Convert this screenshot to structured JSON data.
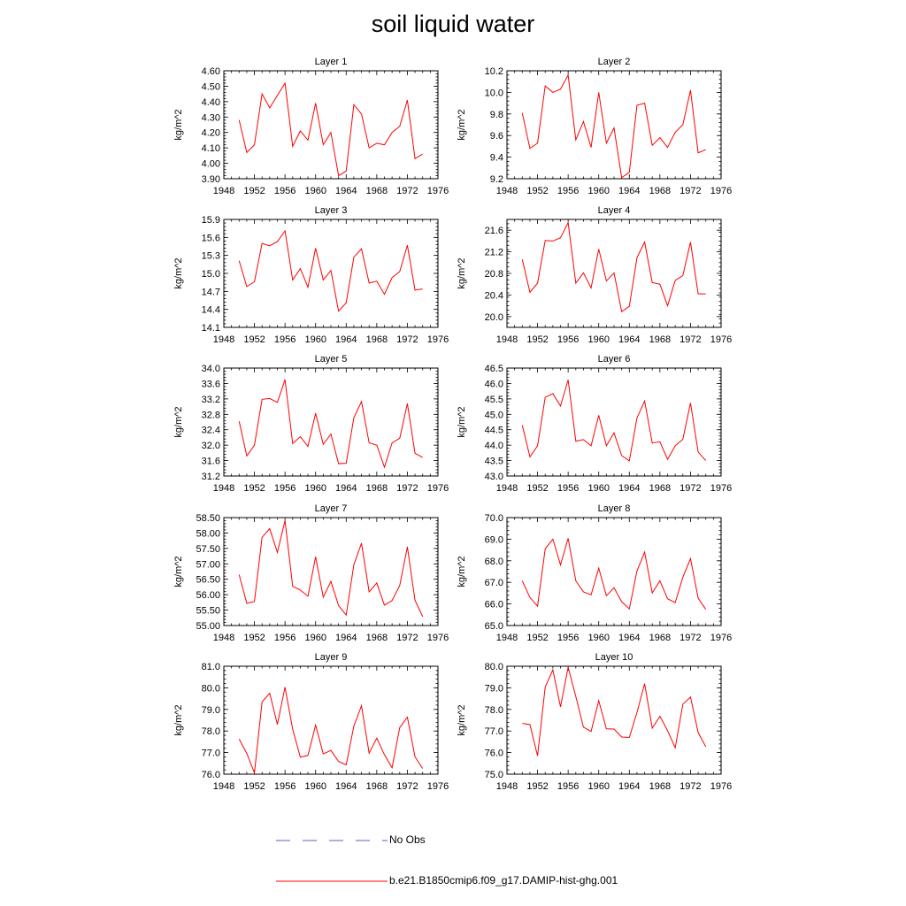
{
  "title": "soil liquid water",
  "legend": [
    {
      "label": "No Obs",
      "color": "#5b5bd6",
      "style": "dashed"
    },
    {
      "label": "b.e21.B1850cmip6.f09_g17.DAMIP-hist-ghg.001",
      "color": "#ff0000",
      "style": "solid"
    }
  ],
  "chart_data": [
    {
      "type": "line",
      "title": "Layer 1",
      "ylabel": "kg/m^2",
      "xlim": [
        1948,
        1976
      ],
      "xticks": [
        1948,
        1952,
        1956,
        1960,
        1964,
        1968,
        1972,
        1976
      ],
      "ylim": [
        3.9,
        4.6
      ],
      "yticks": [
        "3.90",
        "4.00",
        "4.10",
        "4.20",
        "4.30",
        "4.40",
        "4.50",
        "4.60"
      ],
      "x": [
        1950,
        1951,
        1952,
        1953,
        1954,
        1955,
        1956,
        1957,
        1958,
        1959,
        1960,
        1961,
        1962,
        1963,
        1964,
        1965,
        1966,
        1967,
        1968,
        1969,
        1970,
        1971,
        1972,
        1973,
        1974
      ],
      "series": [
        {
          "name": "b.e21.B1850cmip6.f09_g17.DAMIP-hist-ghg.001",
          "values": [
            4.28,
            4.07,
            4.12,
            4.45,
            4.36,
            4.44,
            4.52,
            4.11,
            4.21,
            4.15,
            4.39,
            4.12,
            4.2,
            3.92,
            3.95,
            4.38,
            4.32,
            4.1,
            4.13,
            4.12,
            4.2,
            4.24,
            4.41,
            4.03,
            4.06
          ]
        }
      ]
    },
    {
      "type": "line",
      "title": "Layer 2",
      "ylabel": "kg/m^2",
      "xlim": [
        1948,
        1976
      ],
      "xticks": [
        1948,
        1952,
        1956,
        1960,
        1964,
        1968,
        1972,
        1976
      ],
      "ylim": [
        9.2,
        10.2
      ],
      "yticks": [
        "9.2",
        "9.4",
        "9.6",
        "9.8",
        "10.0",
        "10.2"
      ],
      "x": [
        1950,
        1951,
        1952,
        1953,
        1954,
        1955,
        1956,
        1957,
        1958,
        1959,
        1960,
        1961,
        1962,
        1963,
        1964,
        1965,
        1966,
        1967,
        1968,
        1969,
        1970,
        1971,
        1972,
        1973,
        1974
      ],
      "series": [
        {
          "name": "b.e21.B1850cmip6.f09_g17.DAMIP-hist-ghg.001",
          "values": [
            9.81,
            9.48,
            9.53,
            10.06,
            10.0,
            10.03,
            10.16,
            9.56,
            9.73,
            9.49,
            10.0,
            9.53,
            9.67,
            9.21,
            9.26,
            9.88,
            9.9,
            9.51,
            9.58,
            9.49,
            9.63,
            9.7,
            10.02,
            9.44,
            9.47
          ]
        }
      ]
    },
    {
      "type": "line",
      "title": "Layer 3",
      "ylabel": "kg/m^2",
      "xlim": [
        1948,
        1976
      ],
      "xticks": [
        1948,
        1952,
        1956,
        1960,
        1964,
        1968,
        1972,
        1976
      ],
      "ylim": [
        14.1,
        15.9
      ],
      "yticks": [
        "14.1",
        "14.4",
        "14.7",
        "15.0",
        "15.3",
        "15.6",
        "15.9"
      ],
      "x": [
        1950,
        1951,
        1952,
        1953,
        1954,
        1955,
        1956,
        1957,
        1958,
        1959,
        1960,
        1961,
        1962,
        1963,
        1964,
        1965,
        1966,
        1967,
        1968,
        1969,
        1970,
        1971,
        1972,
        1973,
        1974
      ],
      "series": [
        {
          "name": "b.e21.B1850cmip6.f09_g17.DAMIP-hist-ghg.001",
          "values": [
            15.21,
            14.78,
            14.86,
            15.5,
            15.46,
            15.53,
            15.71,
            14.89,
            15.08,
            14.77,
            15.42,
            14.89,
            15.05,
            14.37,
            14.51,
            15.27,
            15.41,
            14.84,
            14.87,
            14.65,
            14.93,
            15.03,
            15.47,
            14.72,
            14.74
          ]
        }
      ]
    },
    {
      "type": "line",
      "title": "Layer 4",
      "ylabel": "kg/m^2",
      "xlim": [
        1948,
        1976
      ],
      "xticks": [
        1948,
        1952,
        1956,
        1960,
        1964,
        1968,
        1972,
        1976
      ],
      "ylim": [
        19.8,
        21.8
      ],
      "yticks": [
        "20.0",
        "20.4",
        "20.8",
        "21.2",
        "21.6"
      ],
      "x": [
        1950,
        1951,
        1952,
        1953,
        1954,
        1955,
        1956,
        1957,
        1958,
        1959,
        1960,
        1961,
        1962,
        1963,
        1964,
        1965,
        1966,
        1967,
        1968,
        1969,
        1970,
        1971,
        1972,
        1973,
        1974
      ],
      "series": [
        {
          "name": "b.e21.B1850cmip6.f09_g17.DAMIP-hist-ghg.001",
          "values": [
            21.06,
            20.45,
            20.62,
            21.41,
            21.4,
            21.46,
            21.74,
            20.62,
            20.81,
            20.53,
            21.25,
            20.66,
            20.81,
            20.09,
            20.19,
            21.09,
            21.38,
            20.63,
            20.6,
            20.2,
            20.67,
            20.76,
            21.38,
            20.42,
            20.42
          ]
        }
      ]
    },
    {
      "type": "line",
      "title": "Layer 5",
      "ylabel": "kg/m^2",
      "xlim": [
        1948,
        1976
      ],
      "xticks": [
        1948,
        1952,
        1956,
        1960,
        1964,
        1968,
        1972,
        1976
      ],
      "ylim": [
        31.2,
        34.0
      ],
      "yticks": [
        "31.2",
        "31.6",
        "32.0",
        "32.4",
        "32.8",
        "33.2",
        "33.6",
        "34.0"
      ],
      "x": [
        1950,
        1951,
        1952,
        1953,
        1954,
        1955,
        1956,
        1957,
        1958,
        1959,
        1960,
        1961,
        1962,
        1963,
        1964,
        1965,
        1966,
        1967,
        1968,
        1969,
        1970,
        1971,
        1972,
        1973,
        1974
      ],
      "series": [
        {
          "name": "b.e21.B1850cmip6.f09_g17.DAMIP-hist-ghg.001",
          "values": [
            32.62,
            31.72,
            32.0,
            33.19,
            33.21,
            33.11,
            33.7,
            32.04,
            32.22,
            31.97,
            32.83,
            32.02,
            32.29,
            31.52,
            31.53,
            32.71,
            33.13,
            32.06,
            32.0,
            31.43,
            32.06,
            32.18,
            33.08,
            31.79,
            31.68
          ]
        }
      ]
    },
    {
      "type": "line",
      "title": "Layer 6",
      "ylabel": "kg/m^2",
      "xlim": [
        1948,
        1976
      ],
      "xticks": [
        1948,
        1952,
        1956,
        1960,
        1964,
        1968,
        1972,
        1976
      ],
      "ylim": [
        43.0,
        46.5
      ],
      "yticks": [
        "43.0",
        "43.5",
        "44.0",
        "44.5",
        "45.0",
        "45.5",
        "46.0",
        "46.5"
      ],
      "x": [
        1950,
        1951,
        1952,
        1953,
        1954,
        1955,
        1956,
        1957,
        1958,
        1959,
        1960,
        1961,
        1962,
        1963,
        1964,
        1965,
        1966,
        1967,
        1968,
        1969,
        1970,
        1971,
        1972,
        1973,
        1974
      ],
      "series": [
        {
          "name": "b.e21.B1850cmip6.f09_g17.DAMIP-hist-ghg.001",
          "values": [
            44.65,
            43.62,
            43.98,
            45.55,
            45.67,
            45.27,
            46.12,
            44.13,
            44.18,
            43.98,
            44.97,
            43.98,
            44.4,
            43.66,
            43.49,
            44.88,
            45.43,
            44.07,
            44.11,
            43.54,
            43.98,
            44.19,
            45.37,
            43.78,
            43.5
          ]
        }
      ]
    },
    {
      "type": "line",
      "title": "Layer 7",
      "ylabel": "kg/m^2",
      "xlim": [
        1948,
        1976
      ],
      "xticks": [
        1948,
        1952,
        1956,
        1960,
        1964,
        1968,
        1972,
        1976
      ],
      "ylim": [
        55.0,
        58.5
      ],
      "yticks": [
        "55.00",
        "55.50",
        "56.00",
        "56.50",
        "57.00",
        "57.50",
        "58.00",
        "58.50"
      ],
      "x": [
        1950,
        1951,
        1952,
        1953,
        1954,
        1955,
        1956,
        1957,
        1958,
        1959,
        1960,
        1961,
        1962,
        1963,
        1964,
        1965,
        1966,
        1967,
        1968,
        1969,
        1970,
        1971,
        1972,
        1973,
        1974
      ],
      "series": [
        {
          "name": "b.e21.B1850cmip6.f09_g17.DAMIP-hist-ghg.001",
          "values": [
            56.65,
            55.72,
            55.78,
            57.86,
            58.14,
            57.37,
            58.4,
            56.27,
            56.15,
            55.95,
            57.23,
            55.92,
            56.43,
            55.65,
            55.34,
            56.97,
            57.67,
            56.09,
            56.38,
            55.66,
            55.81,
            56.3,
            57.55,
            55.82,
            55.29
          ]
        }
      ]
    },
    {
      "type": "line",
      "title": "Layer 8",
      "ylabel": "kg/m^2",
      "xlim": [
        1948,
        1976
      ],
      "xticks": [
        1948,
        1952,
        1956,
        1960,
        1964,
        1968,
        1972,
        1976
      ],
      "ylim": [
        65.0,
        70.0
      ],
      "yticks": [
        "65.0",
        "66.0",
        "67.0",
        "68.0",
        "69.0",
        "70.0"
      ],
      "x": [
        1950,
        1951,
        1952,
        1953,
        1954,
        1955,
        1956,
        1957,
        1958,
        1959,
        1960,
        1961,
        1962,
        1963,
        1964,
        1965,
        1966,
        1967,
        1968,
        1969,
        1970,
        1971,
        1972,
        1973,
        1974
      ],
      "series": [
        {
          "name": "b.e21.B1850cmip6.f09_g17.DAMIP-hist-ghg.001",
          "values": [
            67.07,
            66.3,
            65.9,
            68.55,
            69.0,
            67.81,
            69.04,
            67.07,
            66.56,
            66.42,
            67.66,
            66.38,
            66.75,
            66.1,
            65.77,
            67.53,
            68.4,
            66.51,
            67.07,
            66.24,
            66.06,
            67.24,
            68.1,
            66.27,
            65.75
          ]
        }
      ]
    },
    {
      "type": "line",
      "title": "Layer 9",
      "ylabel": "kg/m^2",
      "xlim": [
        1948,
        1976
      ],
      "xticks": [
        1948,
        1952,
        1956,
        1960,
        1964,
        1968,
        1972,
        1976
      ],
      "ylim": [
        76.0,
        81.0
      ],
      "yticks": [
        "76.0",
        "77.0",
        "78.0",
        "79.0",
        "80.0",
        "81.0"
      ],
      "x": [
        1950,
        1951,
        1952,
        1953,
        1954,
        1955,
        1956,
        1957,
        1958,
        1959,
        1960,
        1961,
        1962,
        1963,
        1964,
        1965,
        1966,
        1967,
        1968,
        1969,
        1970,
        1971,
        1972,
        1973,
        1974
      ],
      "series": [
        {
          "name": "b.e21.B1850cmip6.f09_g17.DAMIP-hist-ghg.001",
          "values": [
            77.63,
            76.96,
            76.06,
            79.35,
            79.75,
            78.3,
            80.03,
            78.08,
            76.79,
            76.87,
            78.27,
            76.94,
            77.1,
            76.59,
            76.43,
            78.23,
            79.17,
            76.97,
            77.67,
            76.9,
            76.3,
            78.16,
            78.64,
            76.8,
            76.26
          ]
        }
      ]
    },
    {
      "type": "line",
      "title": "Layer 10",
      "ylabel": "kg/m^2",
      "xlim": [
        1948,
        1976
      ],
      "xticks": [
        1948,
        1952,
        1956,
        1960,
        1964,
        1968,
        1972,
        1976
      ],
      "ylim": [
        75.0,
        80.0
      ],
      "yticks": [
        "75.0",
        "76.0",
        "77.0",
        "78.0",
        "79.0",
        "80.0"
      ],
      "x": [
        1950,
        1951,
        1952,
        1953,
        1954,
        1955,
        1956,
        1957,
        1958,
        1959,
        1960,
        1961,
        1962,
        1963,
        1964,
        1965,
        1966,
        1967,
        1968,
        1969,
        1970,
        1971,
        1972,
        1973,
        1974
      ],
      "series": [
        {
          "name": "b.e21.B1850cmip6.f09_g17.DAMIP-hist-ghg.001",
          "values": [
            77.35,
            77.3,
            75.85,
            79.03,
            79.83,
            78.12,
            79.95,
            78.6,
            77.18,
            76.98,
            78.4,
            77.1,
            77.09,
            76.72,
            76.7,
            77.86,
            79.19,
            77.13,
            77.68,
            77.02,
            76.22,
            78.24,
            78.57,
            76.93,
            76.27
          ]
        }
      ]
    }
  ]
}
